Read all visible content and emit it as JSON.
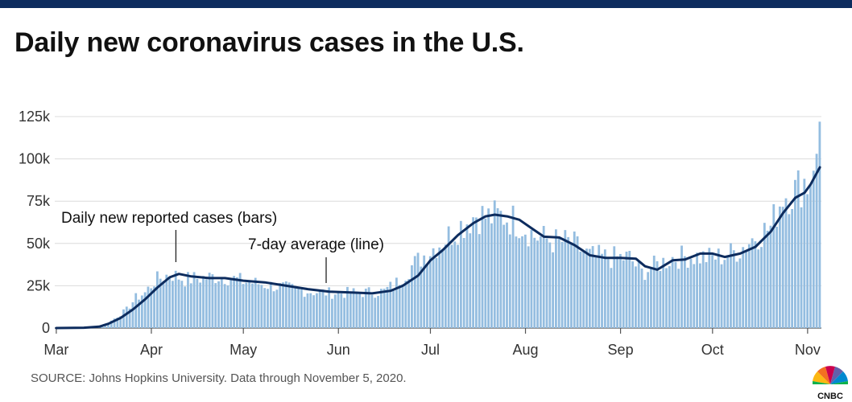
{
  "title": "Daily new coronavirus cases in the U.S.",
  "source": "SOURCE: Johns Hopkins University. Data through November 5, 2020.",
  "logo_text": "CNBC",
  "colors": {
    "bar": "#94bde0",
    "line": "#0d2c5e",
    "grid": "#dcdcdc",
    "axis": "#333333",
    "topbar": "#0d2c5e"
  },
  "chart_data": {
    "type": "bar",
    "overlay": "line",
    "x_range": [
      "2020-03-01",
      "2020-11-05"
    ],
    "ylim": [
      0,
      125000
    ],
    "y_ticks": [
      0,
      25000,
      50000,
      75000,
      100000,
      125000
    ],
    "y_tick_labels": [
      "0",
      "25k",
      "50k",
      "75k",
      "100k",
      "125k"
    ],
    "x_ticks": [
      "2020-03-01",
      "2020-04-01",
      "2020-05-01",
      "2020-06-01",
      "2020-07-01",
      "2020-08-01",
      "2020-09-01",
      "2020-10-01",
      "2020-11-01"
    ],
    "x_tick_labels": [
      "Mar",
      "Apr",
      "May",
      "Jun",
      "Jul",
      "Aug",
      "Sep",
      "Oct",
      "Nov"
    ],
    "grid": true,
    "annotations": [
      {
        "text": "Daily new reported cases (bars)",
        "date": "2020-04-09",
        "value": 34000
      },
      {
        "text": "7-day average (line)",
        "date": "2020-05-28",
        "value": 25000
      }
    ],
    "series": [
      {
        "name": "Daily new reported cases (bars)",
        "anchors": [
          [
            "2020-03-01",
            0
          ],
          [
            "2020-03-10",
            200
          ],
          [
            "2020-03-15",
            800
          ],
          [
            "2020-03-18",
            3000
          ],
          [
            "2020-03-21",
            7000
          ],
          [
            "2020-03-24",
            11000
          ],
          [
            "2020-03-27",
            18000
          ],
          [
            "2020-03-30",
            21000
          ],
          [
            "2020-04-02",
            28000
          ],
          [
            "2020-04-05",
            31000
          ],
          [
            "2020-04-08",
            32000
          ],
          [
            "2020-04-12",
            29000
          ],
          [
            "2020-04-18",
            30000
          ],
          [
            "2020-04-24",
            31000
          ],
          [
            "2020-05-01",
            28000
          ],
          [
            "2020-05-08",
            26000
          ],
          [
            "2020-05-15",
            24000
          ],
          [
            "2020-05-22",
            22000
          ],
          [
            "2020-05-29",
            21000
          ],
          [
            "2020-06-05",
            21000
          ],
          [
            "2020-06-12",
            21500
          ],
          [
            "2020-06-16",
            22000
          ],
          [
            "2020-06-20",
            27000
          ],
          [
            "2020-06-25",
            37000
          ],
          [
            "2020-06-30",
            45000
          ],
          [
            "2020-07-05",
            52000
          ],
          [
            "2020-07-10",
            60000
          ],
          [
            "2020-07-16",
            68000
          ],
          [
            "2020-07-20",
            66000
          ],
          [
            "2020-07-25",
            67000
          ],
          [
            "2020-07-30",
            63000
          ],
          [
            "2020-08-04",
            55000
          ],
          [
            "2020-08-10",
            52000
          ],
          [
            "2020-08-16",
            51000
          ],
          [
            "2020-08-22",
            43000
          ],
          [
            "2020-08-28",
            42000
          ],
          [
            "2020-09-04",
            42000
          ],
          [
            "2020-09-08",
            33000
          ],
          [
            "2020-09-12",
            37000
          ],
          [
            "2020-09-18",
            42000
          ],
          [
            "2020-09-24",
            43000
          ],
          [
            "2020-09-30",
            42000
          ],
          [
            "2020-10-05",
            43000
          ],
          [
            "2020-10-10",
            47000
          ],
          [
            "2020-10-15",
            55000
          ],
          [
            "2020-10-20",
            60000
          ],
          [
            "2020-10-24",
            80000
          ],
          [
            "2020-10-28",
            82000
          ],
          [
            "2020-10-31",
            88000
          ],
          [
            "2020-11-02",
            85000
          ],
          [
            "2020-11-03",
            93000
          ],
          [
            "2020-11-04",
            103000
          ],
          [
            "2020-11-05",
            122000
          ]
        ]
      },
      {
        "name": "7-day average (line)",
        "points": [
          [
            "2020-03-01",
            0
          ],
          [
            "2020-03-10",
            200
          ],
          [
            "2020-03-15",
            800
          ],
          [
            "2020-03-18",
            2500
          ],
          [
            "2020-03-22",
            6000
          ],
          [
            "2020-03-26",
            11000
          ],
          [
            "2020-03-30",
            17000
          ],
          [
            "2020-04-03",
            24000
          ],
          [
            "2020-04-07",
            30000
          ],
          [
            "2020-04-10",
            32000
          ],
          [
            "2020-04-14",
            30500
          ],
          [
            "2020-04-20",
            29500
          ],
          [
            "2020-04-25",
            29500
          ],
          [
            "2020-05-01",
            28000
          ],
          [
            "2020-05-08",
            27000
          ],
          [
            "2020-05-15",
            25000
          ],
          [
            "2020-05-22",
            23000
          ],
          [
            "2020-05-29",
            21500
          ],
          [
            "2020-06-05",
            21000
          ],
          [
            "2020-06-12",
            20500
          ],
          [
            "2020-06-18",
            22000
          ],
          [
            "2020-06-22",
            25000
          ],
          [
            "2020-06-27",
            31000
          ],
          [
            "2020-07-01",
            40000
          ],
          [
            "2020-07-05",
            46000
          ],
          [
            "2020-07-10",
            55000
          ],
          [
            "2020-07-15",
            62000
          ],
          [
            "2020-07-19",
            66000
          ],
          [
            "2020-07-22",
            67000
          ],
          [
            "2020-07-26",
            66000
          ],
          [
            "2020-07-30",
            64000
          ],
          [
            "2020-08-03",
            59000
          ],
          [
            "2020-08-07",
            54000
          ],
          [
            "2020-08-12",
            53500
          ],
          [
            "2020-08-17",
            49000
          ],
          [
            "2020-08-22",
            43000
          ],
          [
            "2020-08-27",
            41500
          ],
          [
            "2020-09-01",
            41500
          ],
          [
            "2020-09-06",
            41000
          ],
          [
            "2020-09-09",
            36500
          ],
          [
            "2020-09-13",
            34500
          ],
          [
            "2020-09-18",
            40000
          ],
          [
            "2020-09-22",
            40500
          ],
          [
            "2020-09-27",
            44000
          ],
          [
            "2020-10-01",
            44000
          ],
          [
            "2020-10-05",
            42000
          ],
          [
            "2020-10-10",
            44000
          ],
          [
            "2020-10-15",
            48000
          ],
          [
            "2020-10-20",
            57000
          ],
          [
            "2020-10-24",
            68000
          ],
          [
            "2020-10-28",
            77000
          ],
          [
            "2020-10-31",
            80000
          ],
          [
            "2020-11-02",
            85000
          ],
          [
            "2020-11-05",
            95000
          ]
        ]
      }
    ]
  }
}
